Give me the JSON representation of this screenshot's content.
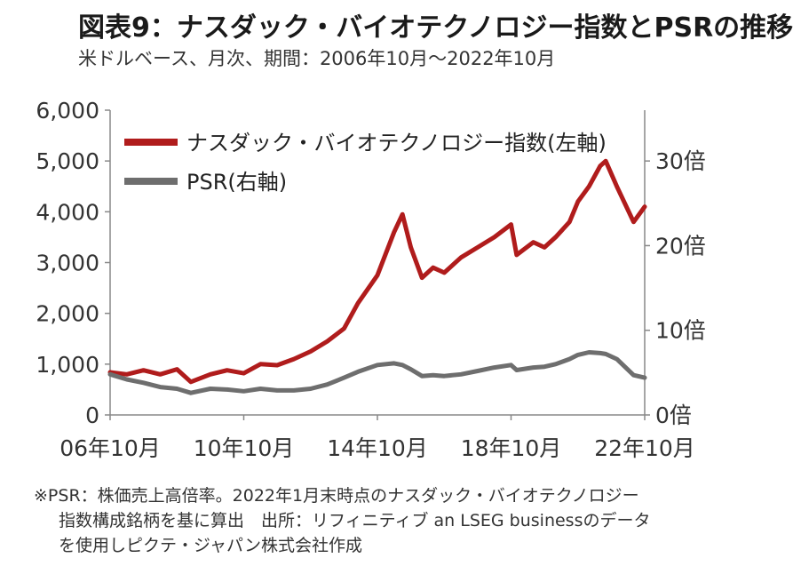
{
  "header": {
    "title": "図表9：ナスダック・バイオテクノロジー指数とPSRの推移",
    "subtitle": "米ドルベース、月次、期間：2006年10月～2022年10月"
  },
  "footnote": {
    "line1": "※PSR：株価売上高倍率。2022年1月末時点のナスダック・バイオテクノロジー",
    "line2": "指数構成銘柄を基に算出　出所：リフィニティブ an LSEG businessのデータ",
    "line3": "を使用しピクテ・ジャパン株式会社作成"
  },
  "chart_data": {
    "type": "line",
    "title": "",
    "x_ticks": [
      "06年10月",
      "10年10月",
      "14年10月",
      "18年10月",
      "22年10月"
    ],
    "y_left": {
      "ticks": [
        "0",
        "1,000",
        "2,000",
        "3,000",
        "4,000",
        "5,000",
        "6,000"
      ],
      "min": 0,
      "max": 6000
    },
    "y_right": {
      "ticks": [
        "0倍",
        "10倍",
        "20倍",
        "30倍"
      ],
      "min": 0,
      "max": 36
    },
    "legend": {
      "placement": "top-left"
    },
    "colors": {
      "index": "#b01c1c",
      "psr": "#6e6e6e",
      "axis": "#888888"
    },
    "series": [
      {
        "name": "ナスダック・バイオテクノロジー指数(左軸)",
        "axis": "left",
        "x": [
          "2006-10",
          "2007-04",
          "2007-10",
          "2008-04",
          "2008-10",
          "2009-03",
          "2009-10",
          "2010-04",
          "2010-10",
          "2011-04",
          "2011-10",
          "2012-04",
          "2012-10",
          "2013-04",
          "2013-10",
          "2014-03",
          "2014-10",
          "2015-04",
          "2015-07",
          "2015-10",
          "2016-02",
          "2016-06",
          "2016-10",
          "2017-04",
          "2017-10",
          "2018-04",
          "2018-10",
          "2018-12",
          "2019-06",
          "2019-10",
          "2020-02",
          "2020-07",
          "2020-10",
          "2021-02",
          "2021-06",
          "2021-08",
          "2021-12",
          "2022-06",
          "2022-10"
        ],
        "y": [
          840,
          800,
          880,
          800,
          900,
          650,
          800,
          880,
          820,
          1000,
          980,
          1100,
          1250,
          1450,
          1700,
          2200,
          2750,
          3600,
          3950,
          3300,
          2700,
          2900,
          2800,
          3100,
          3300,
          3500,
          3750,
          3150,
          3400,
          3300,
          3500,
          3800,
          4200,
          4500,
          4900,
          5000,
          4500,
          3800,
          4100
        ]
      },
      {
        "name": "PSR(右軸)",
        "axis": "right",
        "x": [
          "2006-10",
          "2007-04",
          "2007-10",
          "2008-04",
          "2008-10",
          "2009-03",
          "2009-10",
          "2010-04",
          "2010-10",
          "2011-04",
          "2011-10",
          "2012-04",
          "2012-10",
          "2013-04",
          "2013-10",
          "2014-03",
          "2014-10",
          "2015-04",
          "2015-07",
          "2015-10",
          "2016-02",
          "2016-06",
          "2016-10",
          "2017-04",
          "2017-10",
          "2018-04",
          "2018-10",
          "2018-12",
          "2019-06",
          "2019-10",
          "2020-02",
          "2020-07",
          "2020-10",
          "2021-02",
          "2021-06",
          "2021-08",
          "2021-12",
          "2022-06",
          "2022-10"
        ],
        "y": [
          4.8,
          4.2,
          3.8,
          3.3,
          3.1,
          2.6,
          3.1,
          3.0,
          2.8,
          3.1,
          2.9,
          2.9,
          3.1,
          3.6,
          4.4,
          5.1,
          5.9,
          6.1,
          5.9,
          5.4,
          4.6,
          4.7,
          4.6,
          4.8,
          5.2,
          5.6,
          5.9,
          5.3,
          5.6,
          5.7,
          6.0,
          6.6,
          7.1,
          7.4,
          7.3,
          7.2,
          6.6,
          4.7,
          4.4
        ]
      }
    ]
  }
}
